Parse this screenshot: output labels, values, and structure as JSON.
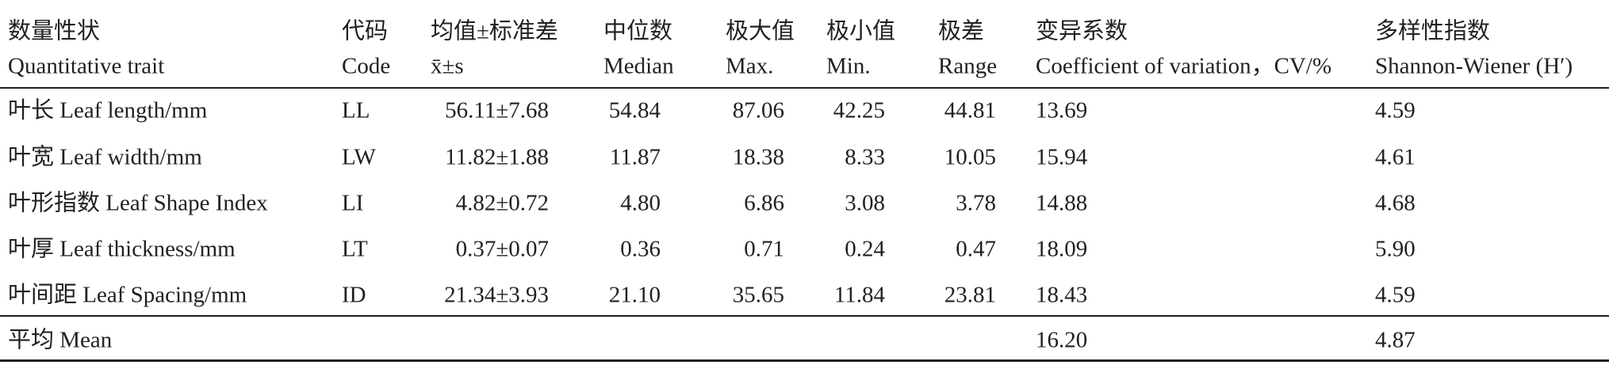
{
  "table": {
    "header": [
      [
        "数量性状",
        "Quantitative trait"
      ],
      [
        "代码",
        "Code"
      ],
      [
        "均值±标准差",
        "x̄±s"
      ],
      [
        "中位数",
        "Median"
      ],
      [
        "极大值",
        "Max."
      ],
      [
        "极小值",
        "Min."
      ],
      [
        "极差",
        "Range"
      ],
      [
        "变异系数",
        "Coefficient of variation，CV/%"
      ],
      [
        "多样性指数",
        "Shannon-Wiener (H′)"
      ]
    ],
    "rows": [
      [
        "叶长 Leaf length/mm",
        "LL",
        "56.11±7.68",
        "54.84",
        "87.06",
        "42.25",
        "44.81",
        "13.69",
        "4.59"
      ],
      [
        "叶宽 Leaf width/mm",
        "LW",
        "11.82±1.88",
        "11.87",
        "18.38",
        "8.33",
        "10.05",
        "15.94",
        "4.61"
      ],
      [
        "叶形指数 Leaf Shape Index",
        "LI",
        "4.82±0.72",
        "4.80",
        "6.86",
        "3.08",
        "3.78",
        "14.88",
        "4.68"
      ],
      [
        "叶厚 Leaf thickness/mm",
        "LT",
        "0.37±0.07",
        "0.36",
        "0.71",
        "0.24",
        "0.47",
        "18.09",
        "5.90"
      ],
      [
        "叶间距 Leaf Spacing/mm",
        "ID",
        "21.34±3.93",
        "21.10",
        "35.65",
        "11.84",
        "23.81",
        "18.43",
        "4.59"
      ]
    ],
    "mean": {
      "label": "平均 Mean",
      "cv": "16.20",
      "h": "4.87"
    }
  }
}
